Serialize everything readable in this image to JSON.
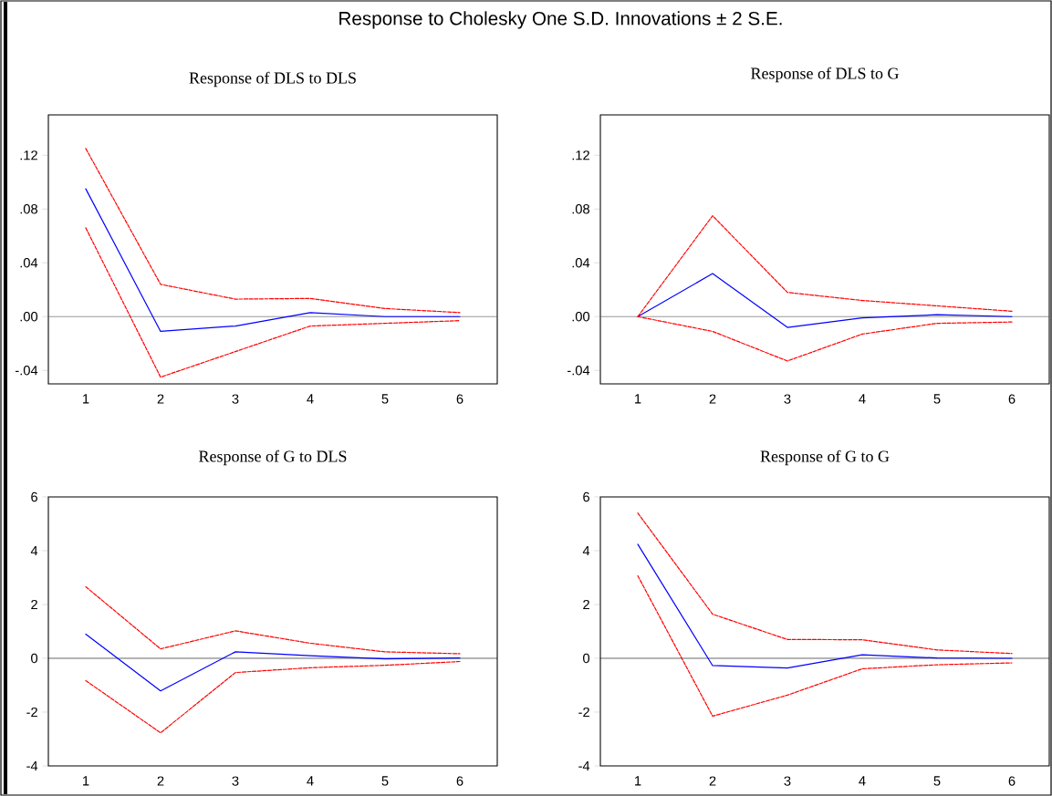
{
  "chart_data": [
    {
      "type": "line",
      "title": "Response of DLS to DLS",
      "annotations": [
        "Response to Cholesky One S.D. Innovations ± 2 S.E."
      ],
      "categories": [
        "1",
        "2",
        "3",
        "4",
        "5",
        "6"
      ],
      "series": [
        {
          "color": "#0000ff",
          "line_style": "solid",
          "values": [
            0.095,
            -0.011,
            -0.007,
            0.003,
            0.0,
            0.0
          ]
        },
        {
          "color": "#ff0000",
          "line_style": "dashed",
          "values": [
            0.125,
            0.024,
            0.013,
            0.0135,
            0.006,
            0.003
          ]
        },
        {
          "color": "#ff0000",
          "line_style": "dashed",
          "values": [
            0.066,
            -0.045,
            -0.026,
            -0.007,
            -0.005,
            -0.003
          ]
        }
      ],
      "ylim": [
        -0.05,
        0.15
      ],
      "yticks": [
        {
          "value": -0.04,
          "label": "-.04"
        },
        {
          "value": 0.0,
          "label": ".00"
        },
        {
          "value": 0.04,
          "label": ".04"
        },
        {
          "value": 0.08,
          "label": ".08"
        },
        {
          "value": 0.12,
          "label": ".12"
        }
      ],
      "ref_lines": [
        {
          "axis": "y",
          "value": 0,
          "color": "#555555"
        }
      ]
    },
    {
      "type": "line",
      "title": "Response of DLS to G",
      "categories": [
        "1",
        "2",
        "3",
        "4",
        "5",
        "6"
      ],
      "series": [
        {
          "color": "#0000ff",
          "line_style": "solid",
          "values": [
            0.0,
            0.032,
            -0.008,
            -0.001,
            0.0014,
            0.0
          ]
        },
        {
          "color": "#ff0000",
          "line_style": "dashed",
          "values": [
            0.0,
            0.075,
            0.018,
            0.012,
            0.008,
            0.004
          ]
        },
        {
          "color": "#ff0000",
          "line_style": "dashed",
          "values": [
            0.0,
            -0.011,
            -0.033,
            -0.013,
            -0.005,
            -0.004
          ]
        }
      ],
      "ylim": [
        -0.05,
        0.15
      ],
      "yticks": [
        {
          "value": -0.04,
          "label": "-.04"
        },
        {
          "value": 0.0,
          "label": ".00"
        },
        {
          "value": 0.04,
          "label": ".04"
        },
        {
          "value": 0.08,
          "label": ".08"
        },
        {
          "value": 0.12,
          "label": ".12"
        }
      ],
      "ref_lines": [
        {
          "axis": "y",
          "value": 0,
          "color": "#555555"
        }
      ]
    },
    {
      "type": "line",
      "title": "Response of G to DLS",
      "categories": [
        "1",
        "2",
        "3",
        "4",
        "5",
        "6"
      ],
      "series": [
        {
          "color": "#0000ff",
          "line_style": "solid",
          "values": [
            0.9,
            -1.21,
            0.24,
            0.1,
            -0.02,
            0.01
          ]
        },
        {
          "color": "#ff0000",
          "line_style": "dashed",
          "values": [
            2.66,
            0.35,
            1.02,
            0.56,
            0.24,
            0.17
          ]
        },
        {
          "color": "#ff0000",
          "line_style": "dashed",
          "values": [
            -0.83,
            -2.77,
            -0.53,
            -0.35,
            -0.26,
            -0.12
          ]
        }
      ],
      "ylim": [
        -4,
        6
      ],
      "yticks": [
        -4,
        -2,
        0,
        2,
        4,
        6
      ],
      "ref_lines": [
        {
          "axis": "y",
          "value": 0,
          "color": "#000000"
        }
      ]
    },
    {
      "type": "line",
      "title": "Response of G to G",
      "categories": [
        "1",
        "2",
        "3",
        "4",
        "5",
        "6"
      ],
      "series": [
        {
          "color": "#0000ff",
          "line_style": "solid",
          "values": [
            4.24,
            -0.27,
            -0.36,
            0.13,
            0.01,
            0.0
          ]
        },
        {
          "color": "#ff0000",
          "line_style": "dashed",
          "values": [
            5.4,
            1.64,
            0.7,
            0.69,
            0.31,
            0.18
          ]
        },
        {
          "color": "#ff0000",
          "line_style": "dashed",
          "values": [
            3.07,
            -2.15,
            -1.37,
            -0.39,
            -0.24,
            -0.17
          ]
        }
      ],
      "ylim": [
        -4,
        6
      ],
      "yticks": [
        -4,
        -2,
        0,
        2,
        4,
        6
      ],
      "ref_lines": [
        {
          "axis": "y",
          "value": 0,
          "color": "#000000"
        }
      ]
    }
  ]
}
